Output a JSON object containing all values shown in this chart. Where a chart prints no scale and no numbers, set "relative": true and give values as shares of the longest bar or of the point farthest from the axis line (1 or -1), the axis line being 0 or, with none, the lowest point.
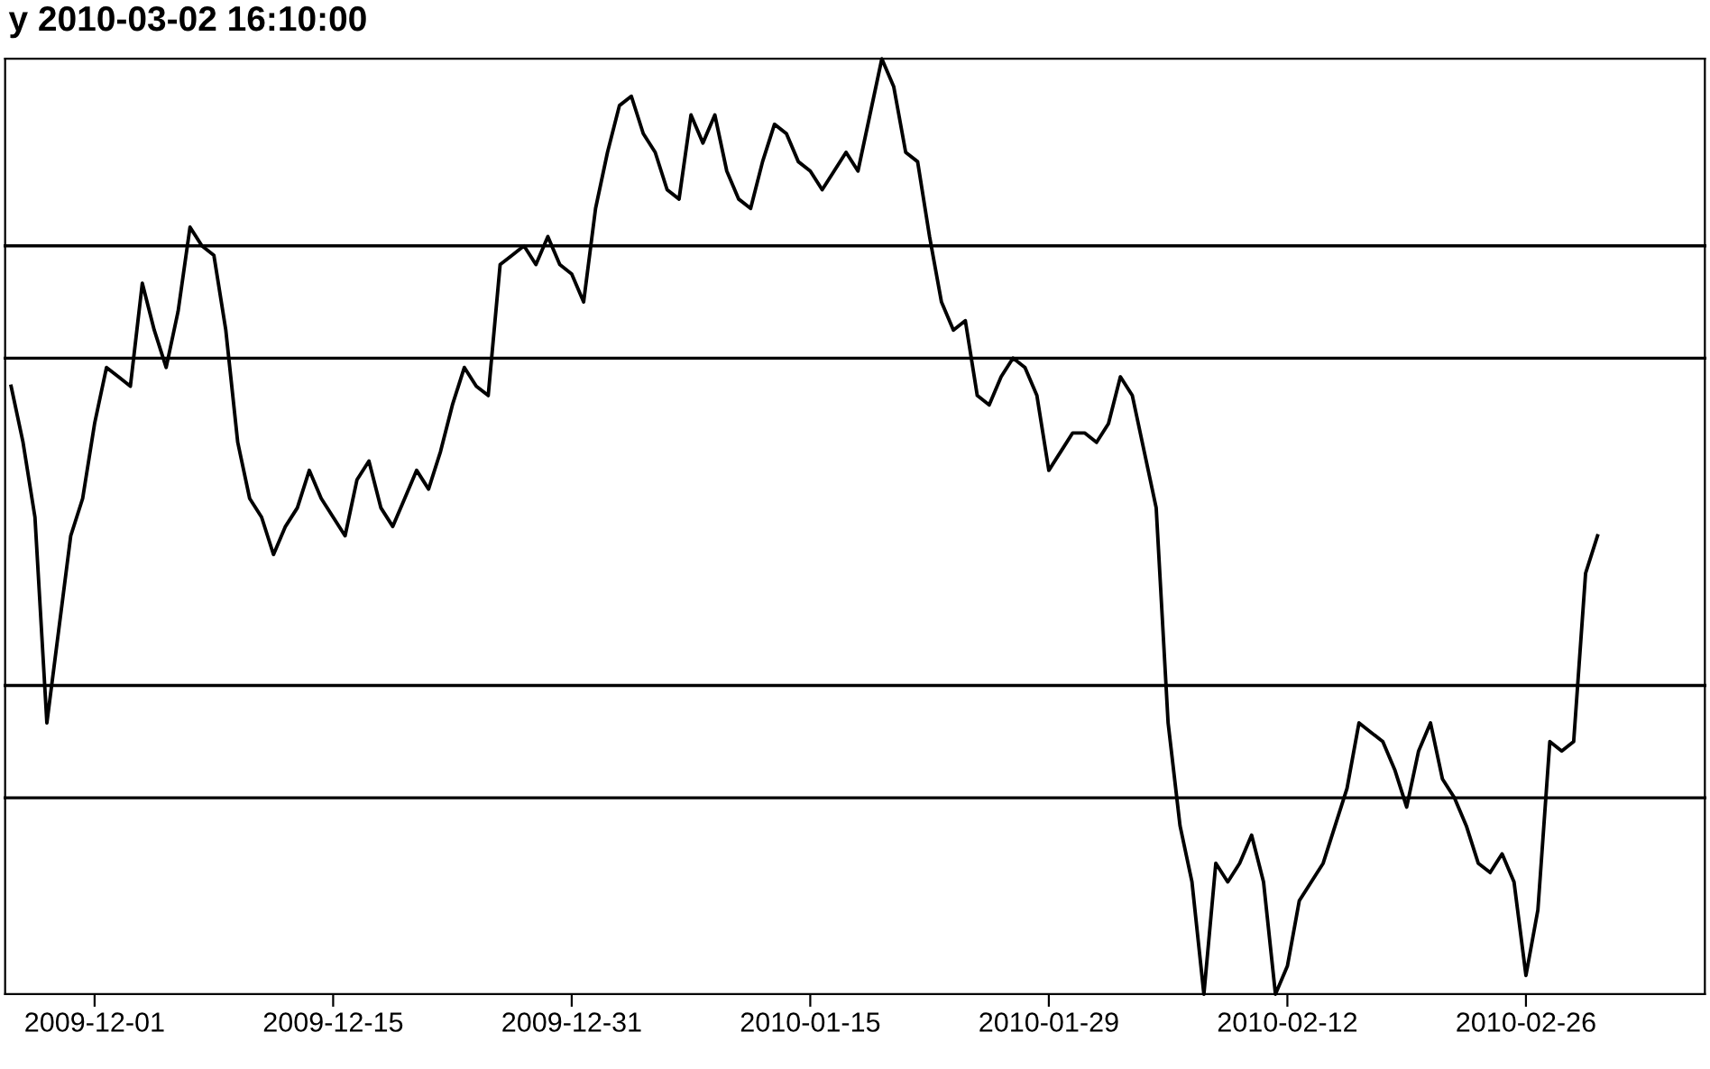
{
  "chart_data": {
    "type": "line",
    "title": "y 2010-03-02 16:10:00",
    "relative": true,
    "legend": false,
    "marker": "none",
    "line_style": "solid",
    "categories": [
      null,
      null,
      null,
      null,
      null,
      null,
      null,
      "2009-12-01",
      null,
      null,
      null,
      null,
      null,
      null,
      null,
      null,
      null,
      null,
      null,
      null,
      null,
      null,
      null,
      null,
      null,
      null,
      null,
      "2009-12-15",
      null,
      null,
      null,
      null,
      null,
      null,
      null,
      null,
      null,
      null,
      null,
      null,
      null,
      null,
      null,
      null,
      null,
      null,
      null,
      "2009-12-31",
      null,
      null,
      null,
      null,
      null,
      null,
      null,
      null,
      null,
      null,
      null,
      null,
      null,
      null,
      null,
      null,
      null,
      null,
      null,
      "2010-01-15",
      null,
      null,
      null,
      null,
      null,
      null,
      null,
      null,
      null,
      null,
      null,
      null,
      null,
      null,
      null,
      null,
      null,
      null,
      null,
      "2010-01-29",
      null,
      null,
      null,
      null,
      null,
      null,
      null,
      null,
      null,
      null,
      null,
      null,
      null,
      null,
      null,
      null,
      null,
      null,
      null,
      "2010-02-12",
      null,
      null,
      null,
      null,
      null,
      null,
      null,
      null,
      null,
      null,
      null,
      null,
      null,
      null,
      null,
      null,
      null,
      null,
      null,
      "2010-02-26",
      null,
      null,
      null,
      null,
      null,
      null
    ],
    "series": [
      {
        "color": "#000000",
        "values": [
          0.65,
          0.59,
          0.51,
          0.29,
          0.39,
          0.49,
          0.53,
          0.61,
          0.67,
          0.66,
          0.65,
          0.76,
          0.71,
          0.67,
          0.73,
          0.82,
          0.8,
          0.79,
          0.71,
          0.59,
          0.53,
          0.51,
          0.47,
          0.5,
          0.52,
          0.56,
          0.53,
          0.51,
          0.49,
          0.55,
          0.57,
          0.52,
          0.5,
          0.53,
          0.56,
          0.54,
          0.58,
          0.63,
          0.67,
          0.65,
          0.64,
          0.78,
          0.79,
          0.8,
          0.78,
          0.81,
          0.78,
          0.77,
          0.74,
          0.84,
          0.9,
          0.95,
          0.96,
          0.92,
          0.9,
          0.86,
          0.85,
          0.94,
          0.91,
          0.94,
          0.88,
          0.85,
          0.84,
          0.89,
          0.93,
          0.92,
          0.89,
          0.88,
          0.86,
          0.88,
          0.9,
          0.88,
          0.94,
          1.0,
          0.97,
          0.9,
          0.89,
          0.81,
          0.74,
          0.71,
          0.72,
          0.64,
          0.63,
          0.66,
          0.68,
          0.67,
          0.64,
          0.56,
          0.58,
          0.6,
          0.6,
          0.59,
          0.61,
          0.66,
          0.64,
          0.58,
          0.52,
          0.29,
          0.18,
          0.12,
          0.0,
          0.14,
          0.12,
          0.14,
          0.17,
          0.12,
          0.0,
          0.03,
          0.1,
          0.12,
          0.14,
          0.18,
          0.22,
          0.29,
          0.28,
          0.27,
          0.24,
          0.2,
          0.26,
          0.29,
          0.23,
          0.21,
          0.18,
          0.14,
          0.13,
          0.15,
          0.12,
          0.02,
          0.09,
          0.27,
          0.26,
          0.27,
          0.45,
          0.49
        ]
      }
    ],
    "ref_lines": [
      {
        "axis": "y",
        "value": 0.8,
        "color": "#000000"
      },
      {
        "axis": "y",
        "value": 0.68,
        "color": "#000000"
      },
      {
        "axis": "y",
        "value": 0.33,
        "color": "#000000"
      },
      {
        "axis": "y",
        "value": 0.21,
        "color": "#000000"
      }
    ]
  }
}
